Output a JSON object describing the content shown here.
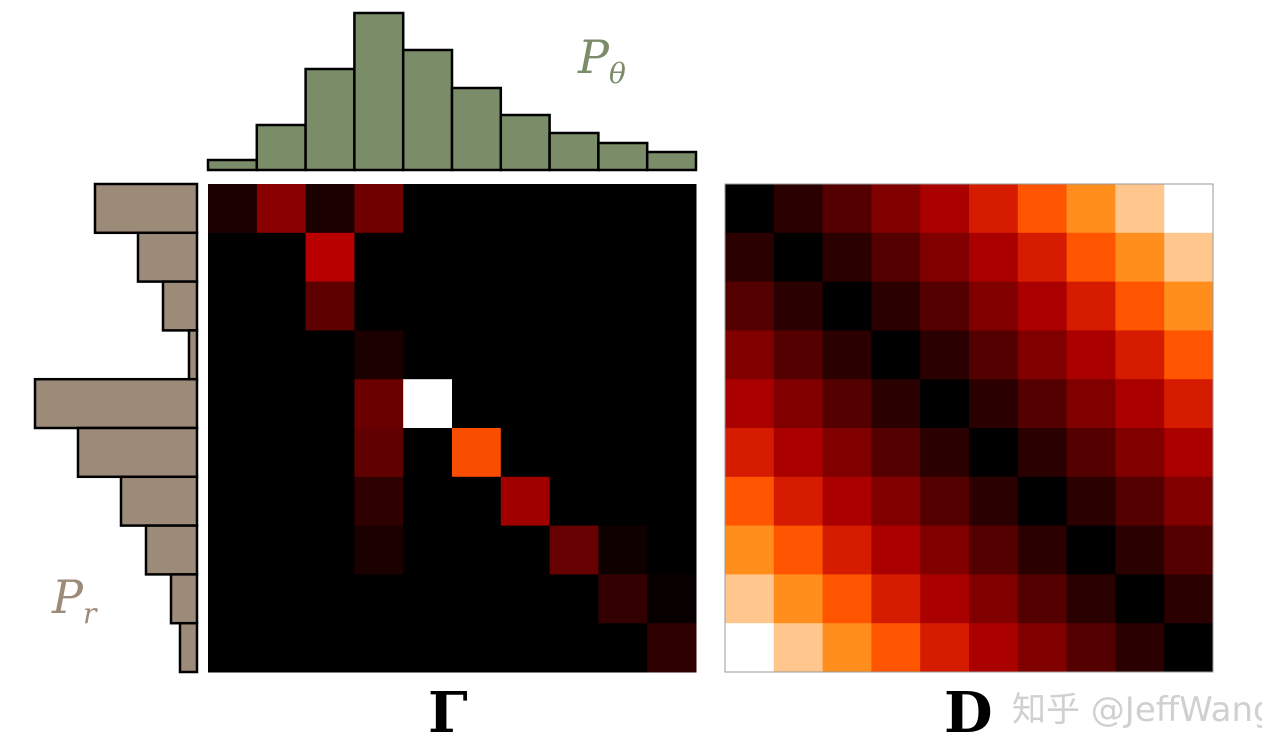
{
  "colors": {
    "p_theta": "#7a8c68",
    "p_r": "#9d8b7a",
    "edge": "#000000"
  },
  "labels": {
    "p_theta_main": "P",
    "p_theta_sub": "θ",
    "p_r_main": "P",
    "p_r_sub": "r",
    "gamma": "Γ",
    "d": "D",
    "watermark": "知乎 @JeffWang"
  },
  "p_theta_hist": [
    10,
    45,
    101,
    157,
    120,
    82,
    55,
    37,
    27,
    18
  ],
  "p_r_hist": [
    102,
    59,
    34,
    8,
    162,
    119,
    76,
    51,
    26,
    17
  ],
  "gamma_matrix": [
    [
      0.07,
      0.36,
      0.07,
      0.29,
      0,
      0,
      0,
      0,
      0,
      0
    ],
    [
      0,
      0,
      0.48,
      0,
      0,
      0,
      0,
      0,
      0,
      0
    ],
    [
      0,
      0,
      0.24,
      0,
      0,
      0,
      0,
      0,
      0,
      0
    ],
    [
      0,
      0,
      0,
      0.07,
      0,
      0,
      0,
      0,
      0,
      0
    ],
    [
      0,
      0,
      0,
      0.28,
      1,
      0,
      0,
      0,
      0,
      0
    ],
    [
      0,
      0,
      0,
      0.25,
      0,
      0.65,
      0,
      0,
      0,
      0
    ],
    [
      0,
      0,
      0,
      0.12,
      0,
      0,
      0.42,
      0,
      0,
      0
    ],
    [
      0,
      0,
      0,
      0.07,
      0,
      0,
      0,
      0.27,
      0.04,
      0
    ],
    [
      0,
      0,
      0,
      0,
      0,
      0,
      0,
      0,
      0.13,
      0.02
    ],
    [
      0,
      0,
      0,
      0,
      0,
      0,
      0,
      0,
      0,
      0.12
    ]
  ],
  "d_matrix_max": 9,
  "d_matrix": "abs(i-j)"
}
